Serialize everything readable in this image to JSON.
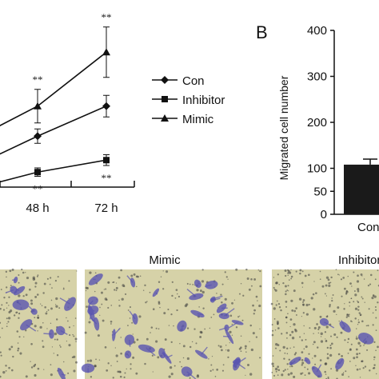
{
  "chart_data": [
    {
      "type": "line",
      "x": [
        "48 h",
        "72 h"
      ],
      "series": [
        {
          "name": "Con",
          "marker": "diamond",
          "values": [
            0.85,
            1.35
          ],
          "errors": [
            0.12,
            0.18
          ]
        },
        {
          "name": "Inhibitor",
          "marker": "square",
          "values": [
            0.25,
            0.45
          ],
          "errors": [
            0.07,
            0.09
          ]
        },
        {
          "name": "Mimic",
          "marker": "triangle",
          "values": [
            1.35,
            2.25
          ],
          "errors": [
            0.28,
            0.42
          ]
        }
      ],
      "annotations": [
        {
          "x": "48 h",
          "series": "Mimic",
          "position": "above",
          "text": "**"
        },
        {
          "x": "72 h",
          "series": "Mimic",
          "position": "above",
          "text": "**"
        },
        {
          "x": "48 h",
          "series": "Inhibitor",
          "position": "below",
          "text": "**"
        },
        {
          "x": "72 h",
          "series": "Inhibitor",
          "position": "below",
          "text": "**"
        }
      ],
      "legend": "right"
    },
    {
      "type": "bar",
      "panel_label": "B",
      "categories": [
        "Con"
      ],
      "values": [
        108
      ],
      "errors": [
        12
      ],
      "ylabel": "Migrated cell number",
      "ylim": [
        0,
        400
      ],
      "yticks": [
        0,
        50,
        100,
        200,
        300,
        400
      ]
    }
  ],
  "images": {
    "labels": [
      "Mimic",
      "Inhibitor"
    ],
    "stain_color": "#5a55b0",
    "background_color": "#d6d2a8"
  },
  "colors": {
    "line": "#111111",
    "bar": "#1a1a1a"
  }
}
